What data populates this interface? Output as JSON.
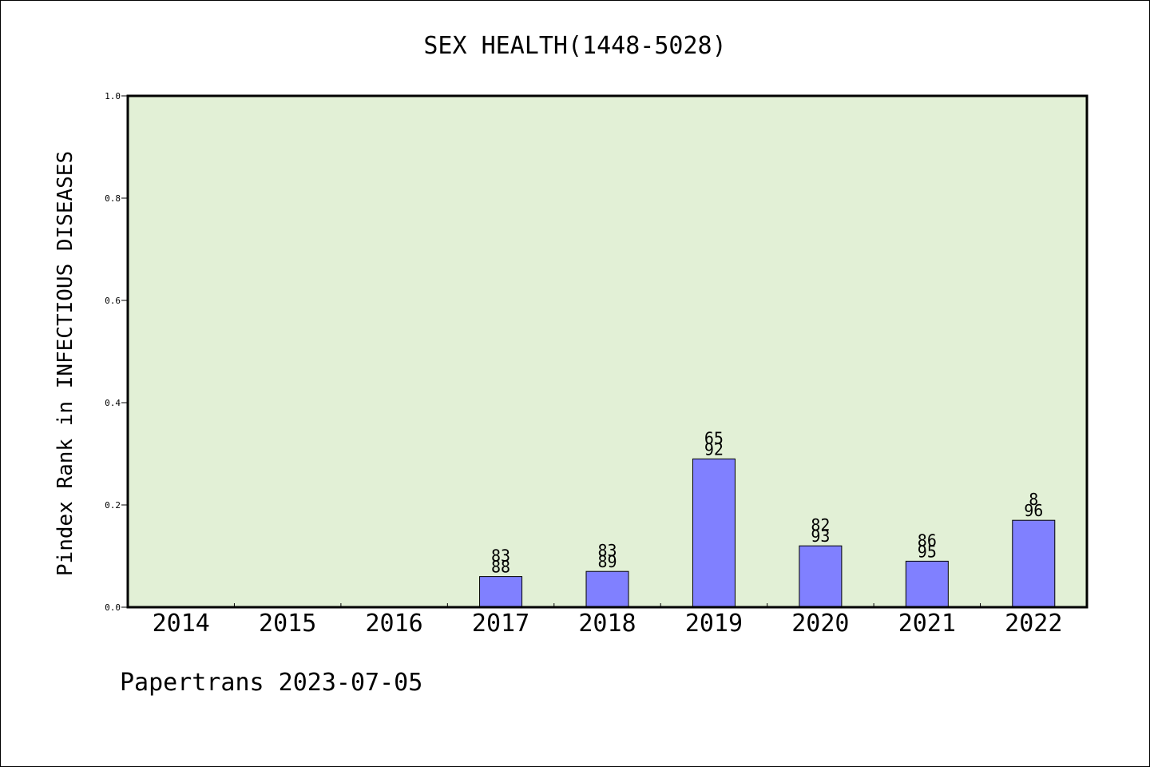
{
  "chart_data": {
    "type": "bar",
    "title": "SEX HEALTH(1448-5028)",
    "ylabel": "Pindex Rank in INFECTIOUS DISEASES",
    "xlabel": "",
    "ylim": [
      0,
      1.0
    ],
    "yticks": [
      "0.0",
      "0.2",
      "0.4",
      "0.6",
      "0.8",
      "1.0"
    ],
    "categories": [
      "2014",
      "2015",
      "2016",
      "2017",
      "2018",
      "2019",
      "2020",
      "2021",
      "2022"
    ],
    "values": [
      null,
      null,
      null,
      0.06,
      0.07,
      0.29,
      0.12,
      0.09,
      0.17
    ],
    "labels_top": [
      "",
      "",
      "",
      "83",
      "83",
      "65",
      "82",
      "86",
      "8"
    ],
    "labels_bottom": [
      "",
      "",
      "",
      "88",
      "89",
      "92",
      "93",
      "95",
      "96"
    ],
    "grid": false,
    "plot_background": "#e2f0d6",
    "bar_color": "#8080ff"
  },
  "footer": {
    "credit": "Papertrans 2023-07-05"
  }
}
